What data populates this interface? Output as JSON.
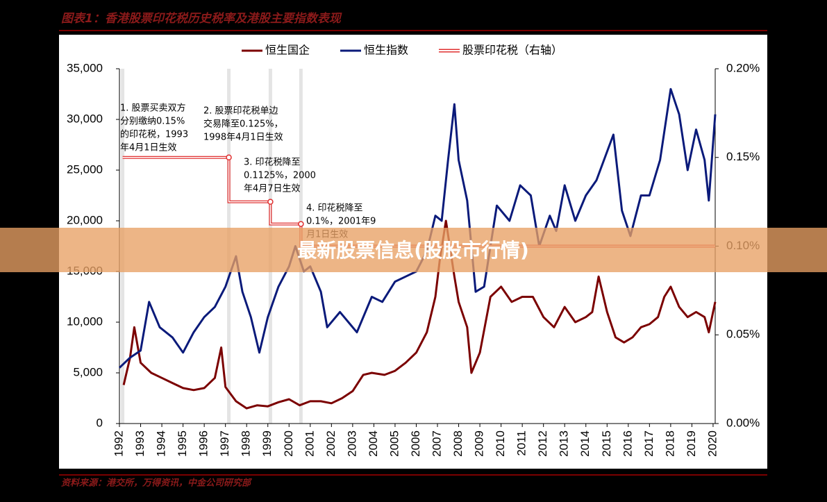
{
  "chart_data": {
    "type": "line",
    "title": "图表1：香港股票印花税历史税率及港股主要指数表现",
    "source": "资料来源：港交所，万得资讯，中金公司研究部",
    "banner": "最新股票信息(股股市行情)",
    "xlim": [
      1992,
      2020.1
    ],
    "xticks": [
      1992,
      1993,
      1994,
      1995,
      1996,
      1997,
      1998,
      1999,
      2000,
      2001,
      2002,
      2003,
      2004,
      2005,
      2006,
      2007,
      2008,
      2009,
      2010,
      2011,
      2012,
      2013,
      2014,
      2015,
      2016,
      2017,
      2018,
      2019,
      2020
    ],
    "ylim": [
      0,
      35000
    ],
    "yticks": [
      {
        "value": 0,
        "label": "0"
      },
      {
        "value": 5000,
        "label": "5,000"
      },
      {
        "value": 10000,
        "label": "10,000"
      },
      {
        "value": 15000,
        "label": "15,000"
      },
      {
        "value": 20000,
        "label": "20,000"
      },
      {
        "value": 25000,
        "label": "25,000"
      },
      {
        "value": 30000,
        "label": "30,000"
      },
      {
        "value": 35000,
        "label": "35,000"
      }
    ],
    "y2lim": [
      0,
      0.2
    ],
    "y2ticks": [
      {
        "value": 0,
        "label": "0.00%"
      },
      {
        "value": 0.05,
        "label": "0.05%"
      },
      {
        "value": 0.1,
        "label": "0.10%"
      },
      {
        "value": 0.15,
        "label": "0.15%"
      },
      {
        "value": 0.2,
        "label": "0.20%"
      }
    ],
    "series": [
      {
        "name": "恒生国企",
        "color": "#7b0000",
        "x": [
          1992.2,
          1992.5,
          1992.7,
          1993.0,
          1993.5,
          1994.0,
          1994.5,
          1995.0,
          1995.5,
          1996.0,
          1996.5,
          1996.8,
          1997.0,
          1997.5,
          1998.0,
          1998.5,
          1999.0,
          1999.5,
          2000.0,
          2000.5,
          2001.0,
          2001.5,
          2002.0,
          2002.5,
          2003.0,
          2003.5,
          2003.9,
          2004.5,
          2005.0,
          2005.5,
          2006.0,
          2006.5,
          2006.9,
          2007.1,
          2007.4,
          2007.8,
          2008.0,
          2008.4,
          2008.6,
          2009.0,
          2009.5,
          2010.0,
          2010.5,
          2011.0,
          2011.5,
          2012.0,
          2012.5,
          2013.0,
          2013.5,
          2014.0,
          2014.3,
          2014.6,
          2015.0,
          2015.4,
          2015.8,
          2016.2,
          2016.6,
          2017.0,
          2017.4,
          2017.7,
          2018.0,
          2018.4,
          2018.8,
          2019.2,
          2019.6,
          2019.8,
          2020.1
        ],
        "values": [
          3800,
          6500,
          9500,
          6000,
          5000,
          4500,
          4000,
          3500,
          3300,
          3500,
          4500,
          7500,
          3600,
          2200,
          1500,
          1800,
          1700,
          2100,
          2400,
          1800,
          2200,
          2200,
          2000,
          2500,
          3200,
          4800,
          5000,
          4800,
          5200,
          6000,
          7000,
          9000,
          12500,
          16000,
          20000,
          14500,
          12000,
          9500,
          5000,
          7000,
          12500,
          13500,
          12000,
          12500,
          12500,
          10500,
          9500,
          11500,
          10000,
          10500,
          11000,
          14500,
          11000,
          8500,
          8000,
          8500,
          9500,
          9800,
          10500,
          12500,
          13500,
          11500,
          10500,
          11000,
          10500,
          9000,
          12000
        ]
      },
      {
        "name": "恒生指数",
        "color": "#0a1a7a",
        "x": [
          1992.0,
          1992.5,
          1993.0,
          1993.4,
          1993.9,
          1994.5,
          1995.0,
          1995.5,
          1996.0,
          1996.5,
          1997.0,
          1997.5,
          1997.8,
          1998.2,
          1998.6,
          1999.0,
          1999.5,
          2000.0,
          2000.3,
          2000.7,
          2001.0,
          2001.5,
          2001.8,
          2002.4,
          2003.2,
          2003.9,
          2004.4,
          2005.0,
          2005.5,
          2006.0,
          2006.5,
          2006.9,
          2007.2,
          2007.5,
          2007.8,
          2008.0,
          2008.4,
          2008.8,
          2009.2,
          2009.8,
          2010.4,
          2010.9,
          2011.4,
          2011.8,
          2012.3,
          2012.6,
          2013.0,
          2013.5,
          2014.0,
          2014.5,
          2015.3,
          2015.7,
          2016.1,
          2016.6,
          2017.0,
          2017.5,
          2018.0,
          2018.4,
          2018.8,
          2019.2,
          2019.6,
          2019.8,
          2020.1
        ],
        "values": [
          5500,
          6500,
          7200,
          12000,
          9500,
          8500,
          7000,
          9000,
          10500,
          11500,
          13500,
          16500,
          13000,
          10500,
          7000,
          10500,
          13500,
          15500,
          17500,
          15000,
          15500,
          13000,
          9500,
          11000,
          9000,
          12500,
          12000,
          14000,
          14500,
          15000,
          17000,
          20500,
          20000,
          26000,
          31500,
          26000,
          22000,
          13000,
          13500,
          21500,
          20000,
          23500,
          22500,
          17500,
          20500,
          19000,
          23500,
          20000,
          22500,
          24000,
          28500,
          21000,
          18500,
          22500,
          22500,
          26000,
          33000,
          30500,
          25000,
          29000,
          26000,
          22000,
          30500
        ]
      },
      {
        "name": "股票印花税（右轴）",
        "color": "#e03030",
        "axis": "y2",
        "x": [
          1992.15,
          1997.16,
          1997.16,
          1999.12,
          1999.12,
          2000.56,
          2000.56,
          2020.1
        ],
        "values": [
          0.15,
          0.15,
          0.125,
          0.125,
          0.1125,
          0.1125,
          0.1,
          0.1
        ]
      }
    ],
    "annotations": [
      {
        "lines": [
          "1. 股票买卖双方",
          "分别缴纳0.15%",
          "的印花税，1993",
          "年4月1日生效"
        ]
      },
      {
        "lines": [
          "2. 股票印花税单边",
          "交易降至0.125%，",
          "1998年4月1日生效"
        ]
      },
      {
        "lines": [
          "3. 印花税降至",
          "0.1125%，2000",
          "年4月7日生效"
        ]
      },
      {
        "lines": [
          "4. 印花税降至",
          "0.1%，2001年9",
          "月1日生效"
        ]
      }
    ]
  }
}
